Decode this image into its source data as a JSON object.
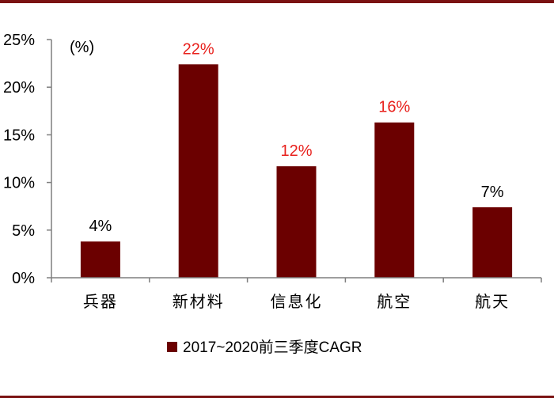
{
  "colors": {
    "bar": "#6b0000",
    "label_highlight": "#e8211d",
    "label_default": "#000000",
    "axis": "#7f7f7f",
    "rule": "#7a1212"
  },
  "chart_data": {
    "type": "bar",
    "categories": [
      "兵器",
      "新材料",
      "信息化",
      "航空",
      "航天"
    ],
    "series": [
      {
        "name": "2017~2020前三季度CAGR",
        "values": [
          3.8,
          22.4,
          11.7,
          16.3,
          7.4
        ]
      }
    ],
    "data_labels": [
      "4%",
      "22%",
      "12%",
      "16%",
      "7%"
    ],
    "label_highlight": [
      false,
      true,
      true,
      true,
      false
    ],
    "unit_label": "(%)",
    "ylim": [
      0,
      25
    ],
    "yticks": [
      0,
      5,
      10,
      15,
      20,
      25
    ],
    "ytick_labels": [
      "0%",
      "5%",
      "10%",
      "15%",
      "20%",
      "25%"
    ],
    "grid": false,
    "legend_position": "bottom-center"
  }
}
